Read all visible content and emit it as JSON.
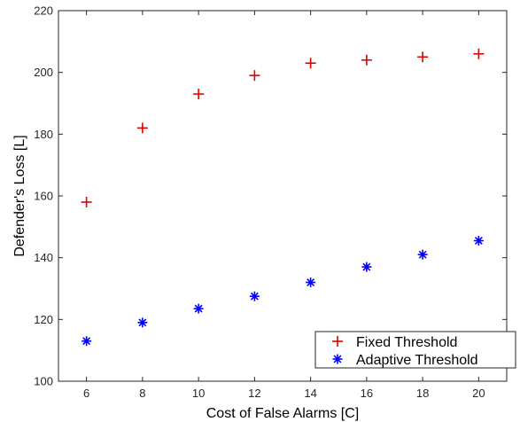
{
  "chart_data": {
    "type": "scatter",
    "title": "",
    "xlabel": "Cost of False Alarms [C]",
    "ylabel": "Defender's Loss [L]",
    "xlim": [
      5,
      21
    ],
    "ylim": [
      100,
      220
    ],
    "xticks": [
      6,
      8,
      10,
      12,
      14,
      16,
      18,
      20
    ],
    "yticks": [
      100,
      120,
      140,
      160,
      180,
      200,
      220
    ],
    "grid": false,
    "legend_position": "bottom-right",
    "series": [
      {
        "name": "Fixed Threshold",
        "marker": "plus",
        "color": "#e00000",
        "x": [
          6,
          8,
          10,
          12,
          14,
          16,
          18,
          20
        ],
        "y": [
          158,
          182,
          193,
          199,
          203,
          204,
          205,
          206
        ]
      },
      {
        "name": "Adaptive Threshold",
        "marker": "asterisk",
        "color": "#0000ff",
        "x": [
          6,
          8,
          10,
          12,
          14,
          16,
          18,
          20
        ],
        "y": [
          113,
          119,
          123.5,
          127.5,
          132,
          137,
          141,
          145.5
        ]
      }
    ]
  }
}
